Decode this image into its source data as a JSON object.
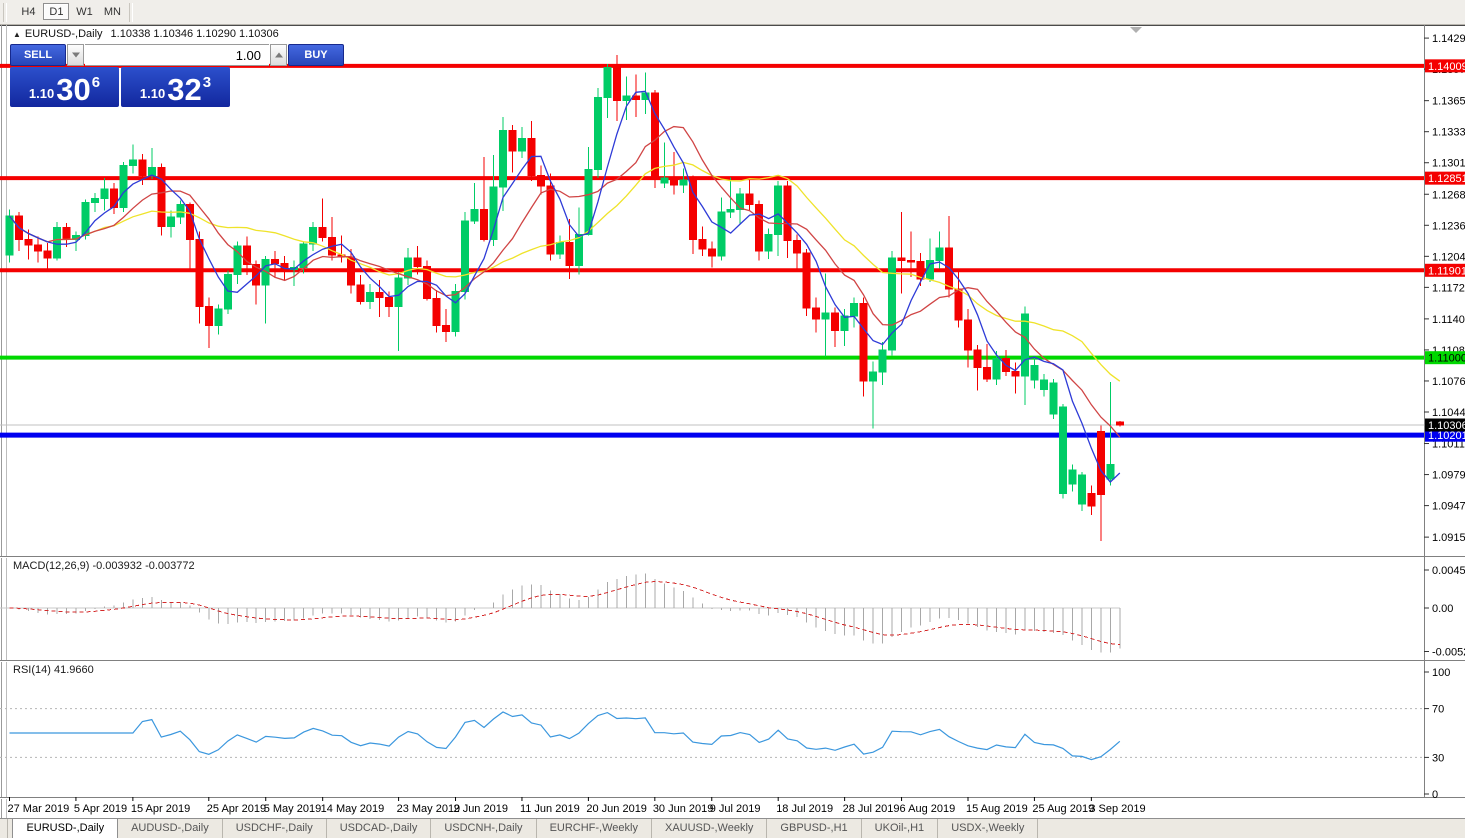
{
  "toolbar": {
    "timeframes": [
      "H4",
      "D1",
      "W1",
      "MN"
    ],
    "active": "D1"
  },
  "chart": {
    "title": "EURUSD-,Daily",
    "ohlc_text": "1.10338 1.10346 1.10290 1.10306",
    "collapse_marker": "▲",
    "trade_panel": {
      "sell_label": "SELL",
      "buy_label": "BUY",
      "volume": "1.00",
      "sell_price": {
        "prefix": "1.10",
        "big": "30",
        "sup": "6"
      },
      "buy_price": {
        "prefix": "1.10",
        "big": "32",
        "sup": "3"
      }
    }
  },
  "indicators": {
    "macd_text": "MACD(12,26,9) -0.003932 -0.003772",
    "rsi_text": "RSI(14) 41.9660"
  },
  "tabs": {
    "items": [
      "EURUSD-,Daily",
      "AUDUSD-,Daily",
      "USDCHF-,Daily",
      "USDCAD-,Daily",
      "USDCNH-,Daily",
      "EURCHF-,Weekly",
      "XAUUSD-,Weekly",
      "GBPUSD-,H1",
      "UKOil-,H1",
      "USDX-,Weekly"
    ],
    "active": "EURUSD-,Daily"
  },
  "chart_data": {
    "type": "candlestick",
    "symbol": "EURUSD-,Daily",
    "last_ohlc": {
      "open": 1.10338,
      "high": 1.10346,
      "low": 1.1029,
      "close": 1.10306
    },
    "colors": {
      "bull": "#00cc66",
      "bear": "#f40000",
      "ma_fast": "#2e3bd7",
      "ma_mid": "#d04545",
      "ma_slow": "#efe32a",
      "macd_hist": "#a8a8a8",
      "macd_signal": "#d42a2a",
      "rsi_line": "#3b97de",
      "resistance": "#f40000",
      "support_green": "#00d800",
      "support_blue": "#0000f0",
      "current_price_line": "#c0c0c0"
    },
    "price_axis_ticks": [
      1.14295,
      1.13975,
      1.1365,
      1.1333,
      1.1301,
      1.12685,
      1.12365,
      1.12045,
      1.11725,
      1.114,
      1.1108,
      1.1076,
      1.1044,
      1.10115,
      1.09795,
      1.09475,
      1.0915
    ],
    "hlines": [
      {
        "price": 1.14009,
        "label": "1.14009",
        "color": "#f40000",
        "width": 4,
        "text_color": "#fff",
        "name": "resistance-line-1"
      },
      {
        "price": 1.12851,
        "label": "1.12851",
        "color": "#f40000",
        "width": 4,
        "text_color": "#fff",
        "name": "resistance-line-2"
      },
      {
        "price": 1.11901,
        "label": "1.11901",
        "color": "#f40000",
        "width": 4,
        "text_color": "#fff",
        "name": "resistance-line-3"
      },
      {
        "price": 1.11,
        "label": "1.11000",
        "color": "#00d800",
        "width": 4,
        "text_color": "#000",
        "name": "support-line-green"
      },
      {
        "price": 1.10201,
        "label": "1.10201",
        "color": "#0000f0",
        "width": 5,
        "text_color": "#fff",
        "name": "support-line-blue"
      }
    ],
    "current_price": {
      "value": 1.10306,
      "label": "1.10306"
    },
    "x_tick_labels": [
      {
        "i": 0,
        "t": "27 Mar 2019"
      },
      {
        "i": 7,
        "t": "5 Apr 2019"
      },
      {
        "i": 13,
        "t": "15 Apr 2019"
      },
      {
        "i": 21,
        "t": "25 Apr 2019"
      },
      {
        "i": 27,
        "t": "5 May 2019"
      },
      {
        "i": 33,
        "t": "14 May 2019"
      },
      {
        "i": 41,
        "t": "23 May 2019"
      },
      {
        "i": 47,
        "t": "2 Jun 2019"
      },
      {
        "i": 54,
        "t": "11 Jun 2019"
      },
      {
        "i": 61,
        "t": "20 Jun 2019"
      },
      {
        "i": 68,
        "t": "30 Jun 2019"
      },
      {
        "i": 74,
        "t": "9 Jul 2019"
      },
      {
        "i": 81,
        "t": "18 Jul 2019"
      },
      {
        "i": 88,
        "t": "28 Jul 2019"
      },
      {
        "i": 94,
        "t": "6 Aug 2019"
      },
      {
        "i": 101,
        "t": "15 Aug 2019"
      },
      {
        "i": 108,
        "t": "25 Aug 2019"
      },
      {
        "i": 114,
        "t": "3 Sep 2019"
      }
    ],
    "moving_averages": [
      {
        "period": 5,
        "color": "#2e3bd7"
      },
      {
        "period": 10,
        "color": "#d04545"
      },
      {
        "period": 21,
        "color": "#efe32a"
      }
    ],
    "macd": {
      "label": "MACD(12,26,9)",
      "value": -0.003932,
      "signal_value": -0.003772,
      "fast": 12,
      "slow": 26,
      "signal": 9,
      "axis_ticks": [
        {
          "v": 0.004536,
          "t": "0.004536"
        },
        {
          "v": 0,
          "t": "0.00"
        },
        {
          "v": -0.005205,
          "t": "-0.005205"
        }
      ]
    },
    "rsi": {
      "label": "RSI(14)",
      "value": 41.966,
      "period": 14,
      "levels": [
        70,
        30
      ],
      "axis_ticks": [
        {
          "v": 100,
          "t": "100"
        },
        {
          "v": 70,
          "t": "70"
        },
        {
          "v": 30,
          "t": "30"
        },
        {
          "v": 0,
          "t": "0"
        }
      ]
    },
    "candles": [
      [
        1.1206,
        1.1253,
        1.1198,
        1.1246
      ],
      [
        1.1246,
        1.125,
        1.121,
        1.1222
      ],
      [
        1.1222,
        1.1232,
        1.1201,
        1.1216
      ],
      [
        1.1216,
        1.1225,
        1.1198,
        1.121
      ],
      [
        1.121,
        1.1218,
        1.1192,
        1.1203
      ],
      [
        1.1203,
        1.124,
        1.12,
        1.1234
      ],
      [
        1.1234,
        1.1239,
        1.1214,
        1.1222
      ],
      [
        1.1222,
        1.123,
        1.121,
        1.1226
      ],
      [
        1.1226,
        1.1263,
        1.1222,
        1.126
      ],
      [
        1.126,
        1.127,
        1.125,
        1.1264
      ],
      [
        1.1264,
        1.1285,
        1.1252,
        1.1274
      ],
      [
        1.1274,
        1.128,
        1.1248,
        1.1255
      ],
      [
        1.1255,
        1.1302,
        1.125,
        1.1298
      ],
      [
        1.1298,
        1.132,
        1.129,
        1.1304
      ],
      [
        1.1304,
        1.131,
        1.1278,
        1.1288
      ],
      [
        1.1288,
        1.1316,
        1.1284,
        1.1296
      ],
      [
        1.1296,
        1.13,
        1.1226,
        1.1235
      ],
      [
        1.1235,
        1.1252,
        1.1224,
        1.1245
      ],
      [
        1.1245,
        1.1262,
        1.1238,
        1.1258
      ],
      [
        1.1258,
        1.126,
        1.1192,
        1.1222
      ],
      [
        1.1222,
        1.123,
        1.1135,
        1.1153
      ],
      [
        1.1153,
        1.1162,
        1.111,
        1.1133
      ],
      [
        1.1133,
        1.1155,
        1.1124,
        1.115
      ],
      [
        1.115,
        1.119,
        1.1145,
        1.1186
      ],
      [
        1.1186,
        1.122,
        1.1176,
        1.1215
      ],
      [
        1.1215,
        1.1225,
        1.1185,
        1.1196
      ],
      [
        1.1196,
        1.12,
        1.1155,
        1.1175
      ],
      [
        1.1175,
        1.1205,
        1.1135,
        1.1201
      ],
      [
        1.1201,
        1.121,
        1.1182,
        1.1197
      ],
      [
        1.1197,
        1.1205,
        1.118,
        1.1191
      ],
      [
        1.1191,
        1.12,
        1.1174,
        1.1193
      ],
      [
        1.1193,
        1.122,
        1.1187,
        1.1217
      ],
      [
        1.1217,
        1.124,
        1.121,
        1.1234
      ],
      [
        1.1234,
        1.1264,
        1.122,
        1.1224
      ],
      [
        1.1224,
        1.1245,
        1.12,
        1.1206
      ],
      [
        1.1206,
        1.1226,
        1.1198,
        1.1204
      ],
      [
        1.1204,
        1.1212,
        1.1166,
        1.1175
      ],
      [
        1.1175,
        1.1185,
        1.1155,
        1.1158
      ],
      [
        1.1158,
        1.1176,
        1.115,
        1.1167
      ],
      [
        1.1167,
        1.118,
        1.1142,
        1.1162
      ],
      [
        1.1162,
        1.1168,
        1.1142,
        1.1153
      ],
      [
        1.1153,
        1.1188,
        1.1107,
        1.1182
      ],
      [
        1.1182,
        1.1213,
        1.1175,
        1.1203
      ],
      [
        1.1203,
        1.1215,
        1.1186,
        1.1194
      ],
      [
        1.1194,
        1.12,
        1.1159,
        1.1161
      ],
      [
        1.1161,
        1.117,
        1.1126,
        1.1133
      ],
      [
        1.1133,
        1.115,
        1.1116,
        1.1127
      ],
      [
        1.1127,
        1.1176,
        1.1122,
        1.1168
      ],
      [
        1.1168,
        1.125,
        1.116,
        1.1241
      ],
      [
        1.1241,
        1.128,
        1.1238,
        1.1253
      ],
      [
        1.1253,
        1.1307,
        1.122,
        1.1222
      ],
      [
        1.1222,
        1.1309,
        1.1215,
        1.1276
      ],
      [
        1.1276,
        1.1348,
        1.1251,
        1.1334
      ],
      [
        1.1334,
        1.134,
        1.1291,
        1.1313
      ],
      [
        1.1313,
        1.1338,
        1.1306,
        1.1326
      ],
      [
        1.1326,
        1.1344,
        1.1282,
        1.1288
      ],
      [
        1.1288,
        1.1298,
        1.1268,
        1.1277
      ],
      [
        1.1277,
        1.129,
        1.12,
        1.1207
      ],
      [
        1.1207,
        1.1226,
        1.1202,
        1.1219
      ],
      [
        1.1219,
        1.1243,
        1.1181,
        1.1195
      ],
      [
        1.1195,
        1.1255,
        1.1186,
        1.1227
      ],
      [
        1.1227,
        1.1317,
        1.1226,
        1.1294
      ],
      [
        1.1294,
        1.1378,
        1.1285,
        1.1368
      ],
      [
        1.1368,
        1.1403,
        1.1347,
        1.1399
      ],
      [
        1.1399,
        1.1412,
        1.1344,
        1.1365
      ],
      [
        1.1365,
        1.139,
        1.1345,
        1.137
      ],
      [
        1.137,
        1.1392,
        1.1348,
        1.1366
      ],
      [
        1.1366,
        1.1394,
        1.1351,
        1.1373
      ],
      [
        1.1373,
        1.1376,
        1.1275,
        1.1285
      ],
      [
        1.128,
        1.1322,
        1.1275,
        1.1285
      ],
      [
        1.1285,
        1.1312,
        1.1268,
        1.1278
      ],
      [
        1.1278,
        1.1295,
        1.127,
        1.1283
      ],
      [
        1.1283,
        1.1288,
        1.1207,
        1.1222
      ],
      [
        1.1222,
        1.1235,
        1.1205,
        1.1212
      ],
      [
        1.1212,
        1.122,
        1.1193,
        1.1205
      ],
      [
        1.1205,
        1.1265,
        1.12,
        1.125
      ],
      [
        1.125,
        1.1286,
        1.1244,
        1.1253
      ],
      [
        1.1253,
        1.1275,
        1.1238,
        1.1269
      ],
      [
        1.1269,
        1.1285,
        1.1251,
        1.1258
      ],
      [
        1.1258,
        1.1262,
        1.12,
        1.121
      ],
      [
        1.121,
        1.1233,
        1.1202,
        1.1227
      ],
      [
        1.1227,
        1.1282,
        1.1205,
        1.1277
      ],
      [
        1.1277,
        1.1282,
        1.1203,
        1.1221
      ],
      [
        1.1221,
        1.1227,
        1.1189,
        1.1208
      ],
      [
        1.1208,
        1.1212,
        1.1143,
        1.1151
      ],
      [
        1.1151,
        1.1162,
        1.1126,
        1.114
      ],
      [
        1.114,
        1.1187,
        1.1101,
        1.1146
      ],
      [
        1.1146,
        1.1152,
        1.1111,
        1.1128
      ],
      [
        1.1128,
        1.115,
        1.1112,
        1.1143
      ],
      [
        1.1143,
        1.1162,
        1.1131,
        1.1156
      ],
      [
        1.1156,
        1.1162,
        1.106,
        1.1076
      ],
      [
        1.1076,
        1.1096,
        1.1027,
        1.1085
      ],
      [
        1.1085,
        1.1116,
        1.1072,
        1.1108
      ],
      [
        1.1108,
        1.121,
        1.1102,
        1.1203
      ],
      [
        1.1203,
        1.125,
        1.1166,
        1.12
      ],
      [
        1.12,
        1.123,
        1.1183,
        1.1199
      ],
      [
        1.1199,
        1.1208,
        1.1174,
        1.1181
      ],
      [
        1.1181,
        1.1223,
        1.1178,
        1.12
      ],
      [
        1.12,
        1.123,
        1.1192,
        1.1213
      ],
      [
        1.1213,
        1.1246,
        1.1162,
        1.1171
      ],
      [
        1.1171,
        1.1192,
        1.1131,
        1.1139
      ],
      [
        1.1139,
        1.115,
        1.109,
        1.1108
      ],
      [
        1.1108,
        1.1113,
        1.1066,
        1.109
      ],
      [
        1.109,
        1.1114,
        1.1075,
        1.1078
      ],
      [
        1.1078,
        1.1107,
        1.1072,
        1.1099
      ],
      [
        1.1099,
        1.1108,
        1.1081,
        1.1086
      ],
      [
        1.1086,
        1.1095,
        1.1063,
        1.1081
      ],
      [
        1.1081,
        1.1153,
        1.1051,
        1.1145
      ],
      [
        1.1077,
        1.11,
        1.1068,
        1.1092
      ],
      [
        1.1067,
        1.1083,
        1.106,
        1.1077
      ],
      [
        1.1042,
        1.1078,
        1.1037,
        1.1074
      ],
      [
        1.096,
        1.1052,
        1.0955,
        1.1049
      ],
      [
        1.097,
        1.099,
        1.0962,
        1.0984
      ],
      [
        1.0949,
        1.0982,
        1.0942,
        1.0979
      ],
      [
        1.096,
        1.0968,
        1.0938,
        1.0947
      ],
      [
        1.1024,
        1.103,
        1.0911,
        1.0959
      ],
      [
        1.0975,
        1.1075,
        1.0968,
        1.099
      ],
      [
        1.10338,
        1.10346,
        1.1029,
        1.10306
      ]
    ]
  }
}
